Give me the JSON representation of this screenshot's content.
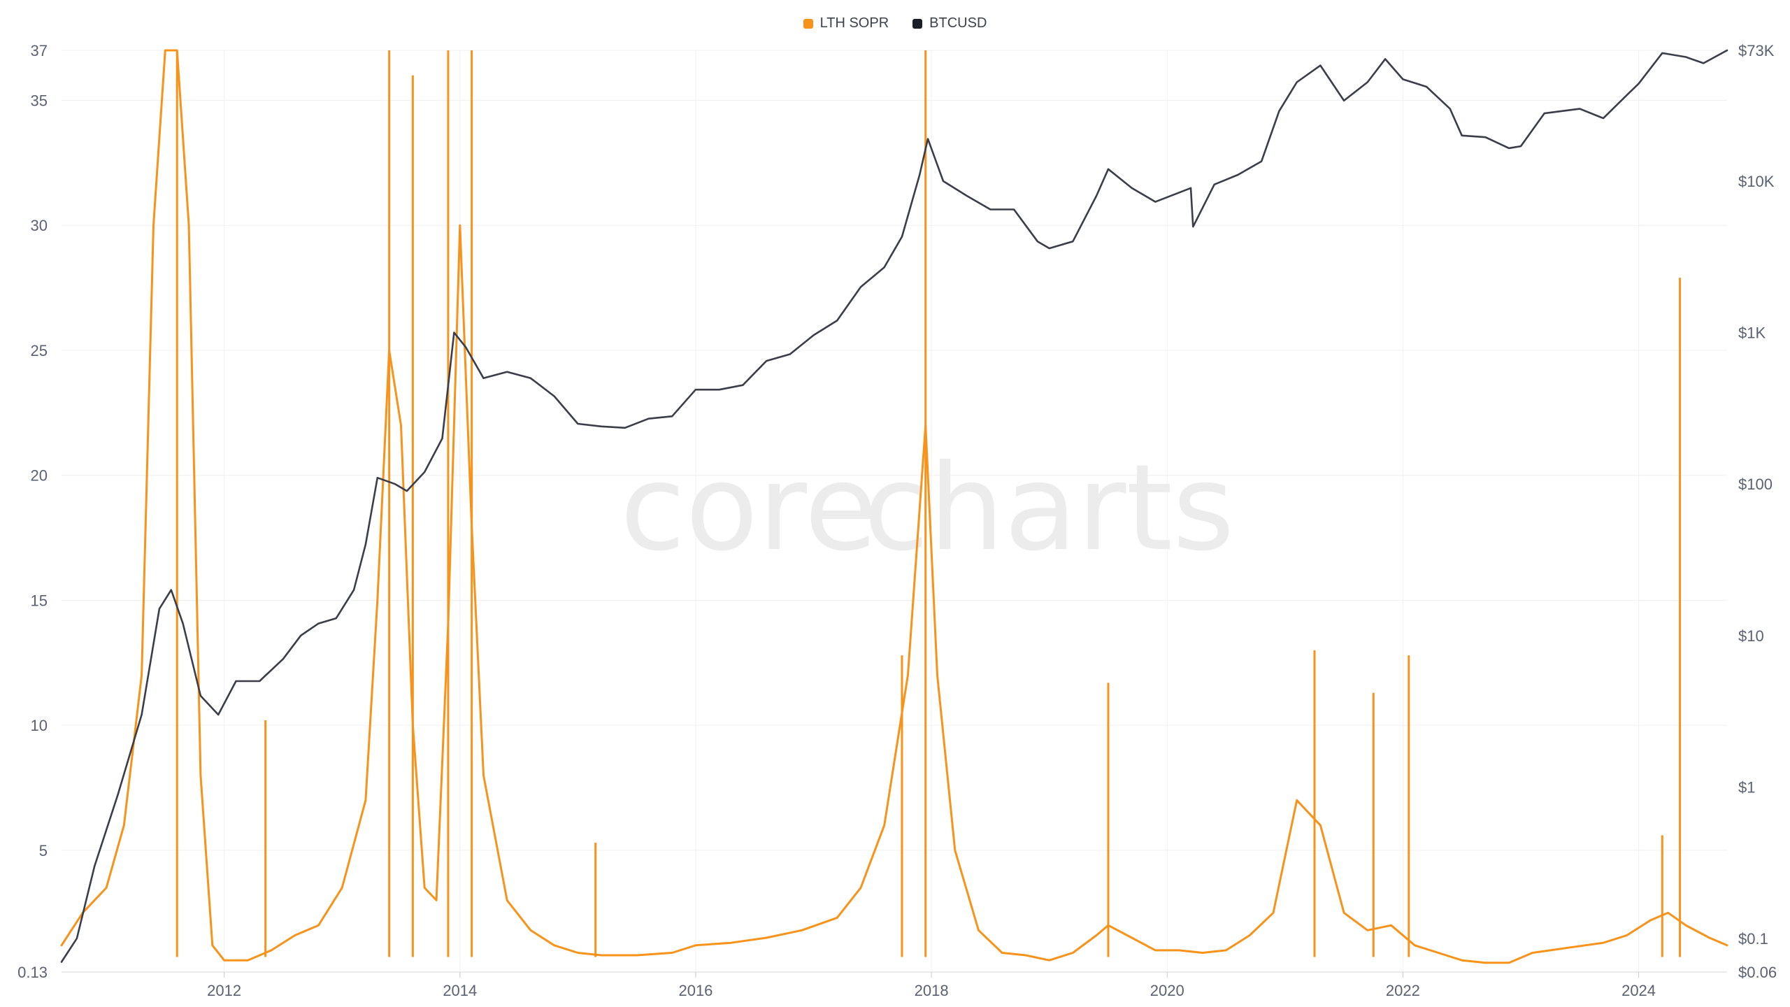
{
  "legend": {
    "items": [
      {
        "label": "LTH SOPR",
        "color": "#f7931a"
      },
      {
        "label": "BTCUSD",
        "color": "#1b1e26"
      }
    ]
  },
  "watermark": {
    "left": "core",
    "right": "charts"
  },
  "chart_data": {
    "type": "line",
    "title": "",
    "xlabel": "",
    "ylabel": "",
    "grid": true,
    "legend_placement": "top-center",
    "x_ticks": [
      "2012",
      "2014",
      "2016",
      "2018",
      "2020",
      "2022",
      "2024"
    ],
    "x_range": [
      2010.62,
      2024.75
    ],
    "y_left": {
      "scale": "linear",
      "range": [
        0.13,
        37
      ],
      "ticks": [
        "0.13",
        "5",
        "10",
        "15",
        "20",
        "25",
        "30",
        "35",
        "37"
      ]
    },
    "y_right": {
      "scale": "log",
      "range": [
        0.06,
        73000
      ],
      "ticks": [
        "$0.06",
        "$0.1",
        "$1",
        "$10",
        "$100",
        "$1K",
        "$10K",
        "$73K"
      ]
    },
    "series": [
      {
        "name": "LTH SOPR",
        "axis": "left",
        "color": "#f7931a",
        "points": [
          [
            2010.62,
            1.2
          ],
          [
            2010.8,
            2.5
          ],
          [
            2011.0,
            3.5
          ],
          [
            2011.15,
            6
          ],
          [
            2011.3,
            12
          ],
          [
            2011.4,
            30
          ],
          [
            2011.5,
            37
          ],
          [
            2011.6,
            37
          ],
          [
            2011.7,
            30
          ],
          [
            2011.8,
            8
          ],
          [
            2011.9,
            1.2
          ],
          [
            2012.0,
            0.6
          ],
          [
            2012.2,
            0.6
          ],
          [
            2012.4,
            1.0
          ],
          [
            2012.6,
            1.6
          ],
          [
            2012.8,
            2.0
          ],
          [
            2013.0,
            3.5
          ],
          [
            2013.2,
            7
          ],
          [
            2013.3,
            15
          ],
          [
            2013.4,
            25
          ],
          [
            2013.5,
            22
          ],
          [
            2013.6,
            10
          ],
          [
            2013.7,
            3.5
          ],
          [
            2013.8,
            3.0
          ],
          [
            2013.9,
            14
          ],
          [
            2014.0,
            30
          ],
          [
            2014.1,
            18
          ],
          [
            2014.2,
            8
          ],
          [
            2014.4,
            3
          ],
          [
            2014.6,
            1.8
          ],
          [
            2014.8,
            1.2
          ],
          [
            2015.0,
            0.9
          ],
          [
            2015.2,
            0.8
          ],
          [
            2015.5,
            0.8
          ],
          [
            2015.8,
            0.9
          ],
          [
            2016.0,
            1.2
          ],
          [
            2016.3,
            1.3
          ],
          [
            2016.6,
            1.5
          ],
          [
            2016.9,
            1.8
          ],
          [
            2017.2,
            2.3
          ],
          [
            2017.4,
            3.5
          ],
          [
            2017.6,
            6
          ],
          [
            2017.8,
            12
          ],
          [
            2017.95,
            22
          ],
          [
            2018.05,
            12
          ],
          [
            2018.2,
            5
          ],
          [
            2018.4,
            1.8
          ],
          [
            2018.6,
            0.9
          ],
          [
            2018.8,
            0.8
          ],
          [
            2019.0,
            0.6
          ],
          [
            2019.2,
            0.9
          ],
          [
            2019.4,
            1.6
          ],
          [
            2019.5,
            2.0
          ],
          [
            2019.7,
            1.5
          ],
          [
            2019.9,
            1.0
          ],
          [
            2020.1,
            1.0
          ],
          [
            2020.3,
            0.9
          ],
          [
            2020.5,
            1.0
          ],
          [
            2020.7,
            1.6
          ],
          [
            2020.9,
            2.5
          ],
          [
            2021.1,
            7
          ],
          [
            2021.3,
            6
          ],
          [
            2021.5,
            2.5
          ],
          [
            2021.7,
            1.8
          ],
          [
            2021.9,
            2.0
          ],
          [
            2022.1,
            1.2
          ],
          [
            2022.3,
            0.9
          ],
          [
            2022.5,
            0.6
          ],
          [
            2022.7,
            0.5
          ],
          [
            2022.9,
            0.5
          ],
          [
            2023.1,
            0.9
          ],
          [
            2023.4,
            1.1
          ],
          [
            2023.7,
            1.3
          ],
          [
            2023.9,
            1.6
          ],
          [
            2024.1,
            2.2
          ],
          [
            2024.25,
            2.5
          ],
          [
            2024.4,
            2.0
          ],
          [
            2024.6,
            1.5
          ],
          [
            2024.75,
            1.2
          ]
        ],
        "spikes": [
          [
            2011.6,
            37
          ],
          [
            2012.35,
            10.2
          ],
          [
            2013.4,
            37
          ],
          [
            2013.6,
            36
          ],
          [
            2013.9,
            37
          ],
          [
            2014.1,
            37
          ],
          [
            2015.15,
            5.3
          ],
          [
            2017.75,
            12.8
          ],
          [
            2017.95,
            37
          ],
          [
            2019.5,
            11.7
          ],
          [
            2021.25,
            13
          ],
          [
            2021.75,
            11.3
          ],
          [
            2022.05,
            12.8
          ],
          [
            2024.2,
            5.6
          ],
          [
            2024.35,
            27.9
          ]
        ]
      },
      {
        "name": "BTCUSD",
        "axis": "right",
        "color": "#3b3e48",
        "points": [
          [
            2010.62,
            0.07
          ],
          [
            2010.75,
            0.1
          ],
          [
            2010.9,
            0.3
          ],
          [
            2011.1,
            0.9
          ],
          [
            2011.3,
            3
          ],
          [
            2011.45,
            15
          ],
          [
            2011.55,
            20
          ],
          [
            2011.65,
            12
          ],
          [
            2011.8,
            4
          ],
          [
            2011.95,
            3
          ],
          [
            2012.1,
            5
          ],
          [
            2012.3,
            5
          ],
          [
            2012.5,
            7
          ],
          [
            2012.65,
            10
          ],
          [
            2012.8,
            12
          ],
          [
            2012.95,
            13
          ],
          [
            2013.1,
            20
          ],
          [
            2013.2,
            40
          ],
          [
            2013.3,
            110
          ],
          [
            2013.45,
            100
          ],
          [
            2013.55,
            90
          ],
          [
            2013.7,
            120
          ],
          [
            2013.85,
            200
          ],
          [
            2013.95,
            1000
          ],
          [
            2014.05,
            800
          ],
          [
            2014.2,
            500
          ],
          [
            2014.4,
            550
          ],
          [
            2014.6,
            500
          ],
          [
            2014.8,
            380
          ],
          [
            2015.0,
            250
          ],
          [
            2015.2,
            240
          ],
          [
            2015.4,
            235
          ],
          [
            2015.6,
            270
          ],
          [
            2015.8,
            280
          ],
          [
            2016.0,
            420
          ],
          [
            2016.2,
            420
          ],
          [
            2016.4,
            450
          ],
          [
            2016.6,
            650
          ],
          [
            2016.8,
            720
          ],
          [
            2017.0,
            960
          ],
          [
            2017.2,
            1200
          ],
          [
            2017.4,
            2000
          ],
          [
            2017.6,
            2700
          ],
          [
            2017.75,
            4300
          ],
          [
            2017.9,
            11000
          ],
          [
            2017.97,
            19000
          ],
          [
            2018.1,
            10000
          ],
          [
            2018.3,
            8000
          ],
          [
            2018.5,
            6500
          ],
          [
            2018.7,
            6500
          ],
          [
            2018.9,
            4000
          ],
          [
            2019.0,
            3600
          ],
          [
            2019.2,
            4000
          ],
          [
            2019.4,
            8000
          ],
          [
            2019.5,
            12000
          ],
          [
            2019.7,
            9000
          ],
          [
            2019.9,
            7300
          ],
          [
            2020.2,
            9000
          ],
          [
            2020.22,
            5000
          ],
          [
            2020.4,
            9500
          ],
          [
            2020.6,
            11000
          ],
          [
            2020.8,
            13500
          ],
          [
            2020.95,
            29000
          ],
          [
            2021.1,
            45000
          ],
          [
            2021.3,
            58000
          ],
          [
            2021.5,
            34000
          ],
          [
            2021.7,
            45000
          ],
          [
            2021.85,
            64000
          ],
          [
            2022.0,
            47000
          ],
          [
            2022.2,
            42000
          ],
          [
            2022.4,
            30000
          ],
          [
            2022.5,
            20000
          ],
          [
            2022.7,
            19500
          ],
          [
            2022.9,
            16500
          ],
          [
            2023.0,
            17000
          ],
          [
            2023.2,
            28000
          ],
          [
            2023.5,
            30000
          ],
          [
            2023.7,
            26000
          ],
          [
            2023.9,
            37000
          ],
          [
            2024.0,
            44000
          ],
          [
            2024.2,
            70000
          ],
          [
            2024.4,
            66000
          ],
          [
            2024.55,
            60000
          ],
          [
            2024.75,
            73000
          ]
        ]
      }
    ]
  }
}
